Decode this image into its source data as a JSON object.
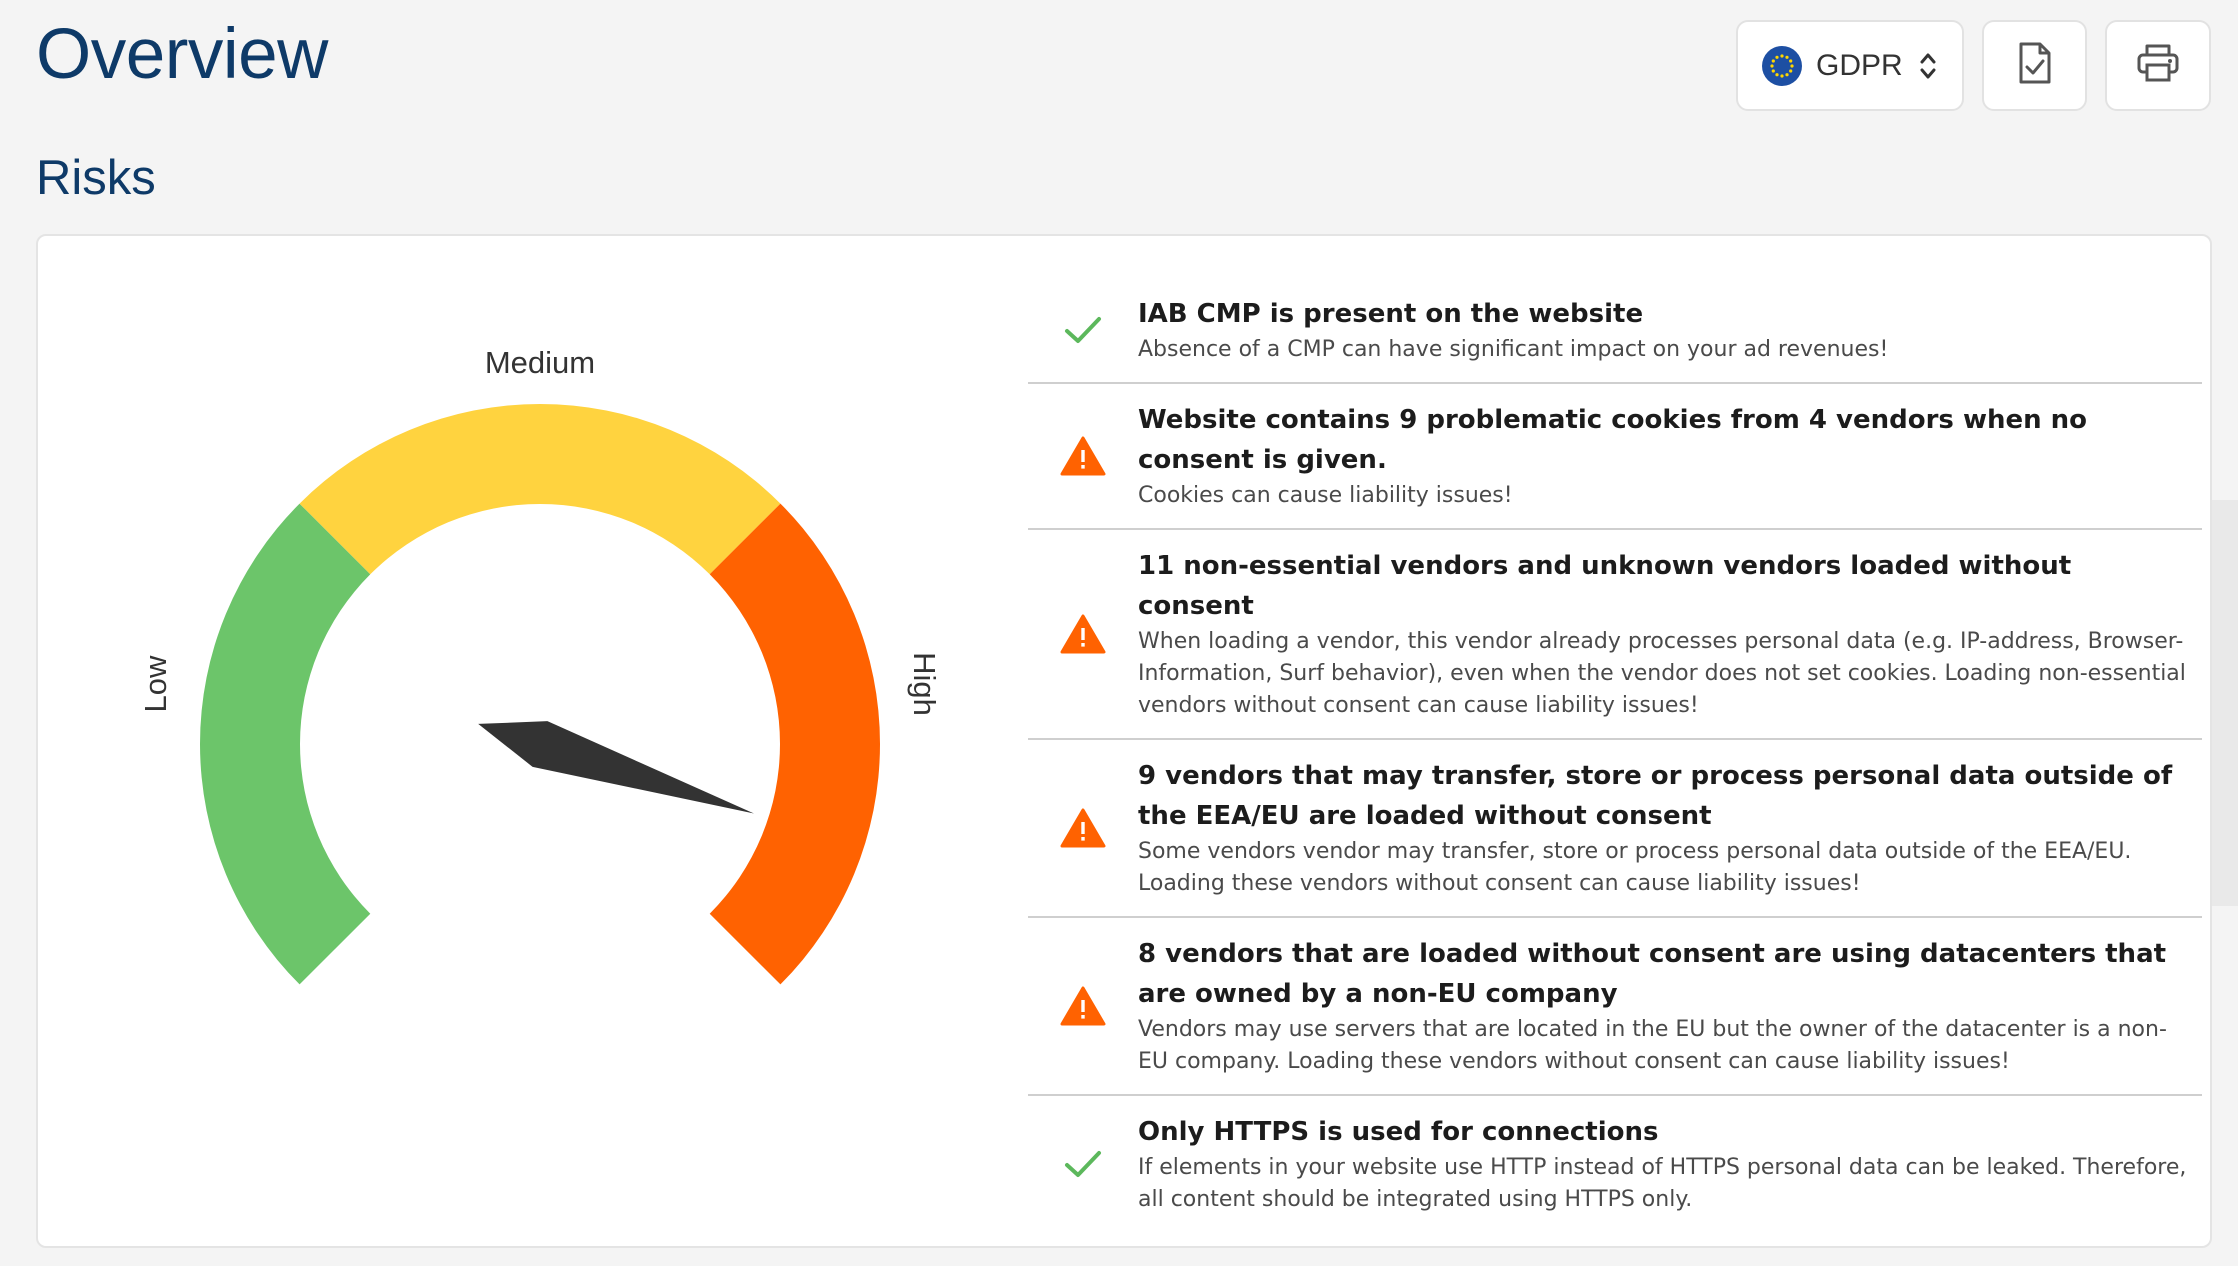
{
  "header": {
    "title": "Overview",
    "regulation": {
      "label": "GDPR",
      "icon": "eu-flag-icon"
    },
    "report_icon": "document-check-icon",
    "print_icon": "printer-icon"
  },
  "section": {
    "title": "Risks"
  },
  "gauge": {
    "labels": {
      "low": "Low",
      "medium": "Medium",
      "high": "High"
    },
    "colors": {
      "low": "#6cc56a",
      "medium": "#ffd33f",
      "high": "#ff6201",
      "needle": "#333333"
    },
    "value": 0.9
  },
  "colors": {
    "ok": "#5cb85c",
    "warning": "#ff6201",
    "title": "#0e3a68"
  },
  "risks": [
    {
      "status": "ok",
      "icon": "checkmark-icon",
      "title": "IAB CMP is present on the website",
      "description": "Absence of a CMP can have significant impact on your ad revenues!"
    },
    {
      "status": "warning",
      "icon": "warning-triangle-icon",
      "title": "Website contains 9 problematic cookies from 4 vendors when no consent is given.",
      "description": "Cookies can cause liability issues!"
    },
    {
      "status": "warning",
      "icon": "warning-triangle-icon",
      "title": "11 non-essential vendors and unknown vendors loaded without consent",
      "description": "When loading a vendor, this vendor already processes personal data (e.g. IP-address, Browser-Information, Surf behavior), even when the vendor does not set cookies. Loading non-essential vendors without consent can cause liability issues!"
    },
    {
      "status": "warning",
      "icon": "warning-triangle-icon",
      "title": "9 vendors that may transfer, store or process personal data outside of the EEA/EU are loaded without consent",
      "description": "Some vendors vendor may transfer, store or process personal data outside of the EEA/EU. Loading these vendors without consent can cause liability issues!"
    },
    {
      "status": "warning",
      "icon": "warning-triangle-icon",
      "title": "8 vendors that are loaded without consent are using datacenters that are owned by a non-EU company",
      "description": "Vendors may use servers that are located in the EU but the owner of the datacenter is a non-EU company. Loading these vendors without consent can cause liability issues!"
    },
    {
      "status": "ok",
      "icon": "checkmark-icon",
      "title": "Only HTTPS is used for connections",
      "description": "If elements in your website use HTTP instead of HTTPS personal data can be leaked. Therefore, all content should be integrated using HTTPS only."
    }
  ]
}
